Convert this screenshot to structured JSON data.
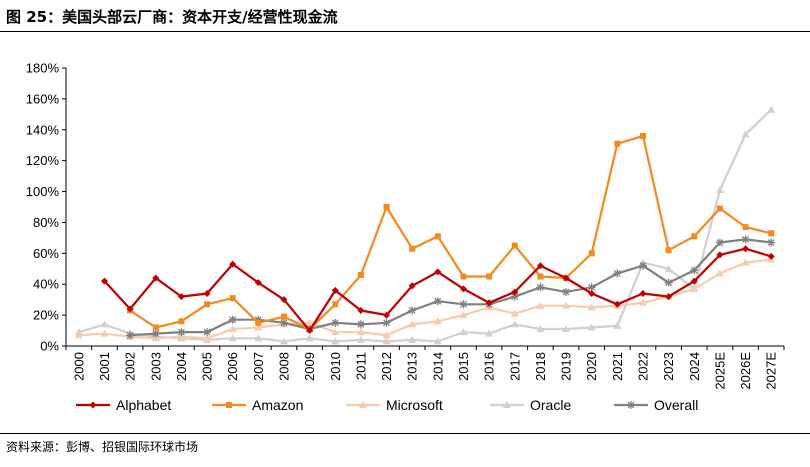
{
  "header": {
    "title": "图 25：美国头部云厂商：资本开支/经营性现金流"
  },
  "footer": {
    "source": "资料来源：彭博、招银国际环球市场"
  },
  "colors": {
    "Alphabet": "#c00000",
    "Amazon": "#f28a1e",
    "Microsoft": "#f8cbad",
    "Oracle": "#d0d0d0",
    "Overall": "#808080"
  },
  "chart_data": {
    "type": "line",
    "title": "",
    "xlabel": "",
    "ylabel": "",
    "ylim": [
      0,
      180
    ],
    "yticks": [
      "0%",
      "20%",
      "40%",
      "60%",
      "80%",
      "100%",
      "120%",
      "140%",
      "160%",
      "180%"
    ],
    "categories": [
      "2000",
      "2001",
      "2002",
      "2003",
      "2004",
      "2005",
      "2006",
      "2007",
      "2008",
      "2009",
      "2010",
      "2011",
      "2012",
      "2013",
      "2014",
      "2015",
      "2016",
      "2017",
      "2018",
      "2019",
      "2020",
      "2021",
      "2022",
      "2023",
      "2024",
      "2025E",
      "2026E",
      "2027E"
    ],
    "grid": false,
    "legend": "bottom",
    "series": [
      {
        "name": "Alphabet",
        "marker": "diamond",
        "values": [
          null,
          42,
          24,
          44,
          32,
          34,
          53,
          41,
          30,
          10,
          36,
          23,
          20,
          39,
          48,
          37,
          28,
          35,
          52,
          44,
          34,
          27,
          34,
          32,
          42,
          59,
          63,
          58
        ]
      },
      {
        "name": "Amazon",
        "marker": "square",
        "values": [
          null,
          null,
          23,
          12,
          16,
          27,
          31,
          15,
          19,
          11,
          27,
          46,
          90,
          63,
          71,
          45,
          45,
          65,
          45,
          44,
          60,
          131,
          136,
          62,
          71,
          89,
          77,
          73
        ]
      },
      {
        "name": "Microsoft",
        "marker": "triangle",
        "values": [
          7,
          8,
          6,
          5,
          6,
          5,
          11,
          12,
          14,
          15,
          9,
          9,
          7,
          14,
          16,
          20,
          25,
          21,
          26,
          26,
          25,
          26,
          28,
          32,
          37,
          47,
          54,
          56
        ]
      },
      {
        "name": "Oracle",
        "marker": "triangle",
        "values": [
          9,
          14,
          8,
          6,
          5,
          4,
          5,
          5,
          3,
          5,
          3,
          4,
          3,
          4,
          3,
          9,
          8,
          14,
          11,
          11,
          12,
          13,
          54,
          50,
          37,
          101,
          137,
          153
        ]
      },
      {
        "name": "Overall",
        "marker": "star",
        "values": [
          null,
          null,
          7,
          8,
          9,
          9,
          17,
          17,
          15,
          11,
          15,
          14,
          15,
          23,
          29,
          27,
          27,
          32,
          38,
          35,
          38,
          47,
          52,
          41,
          49,
          67,
          69,
          67
        ]
      }
    ]
  }
}
